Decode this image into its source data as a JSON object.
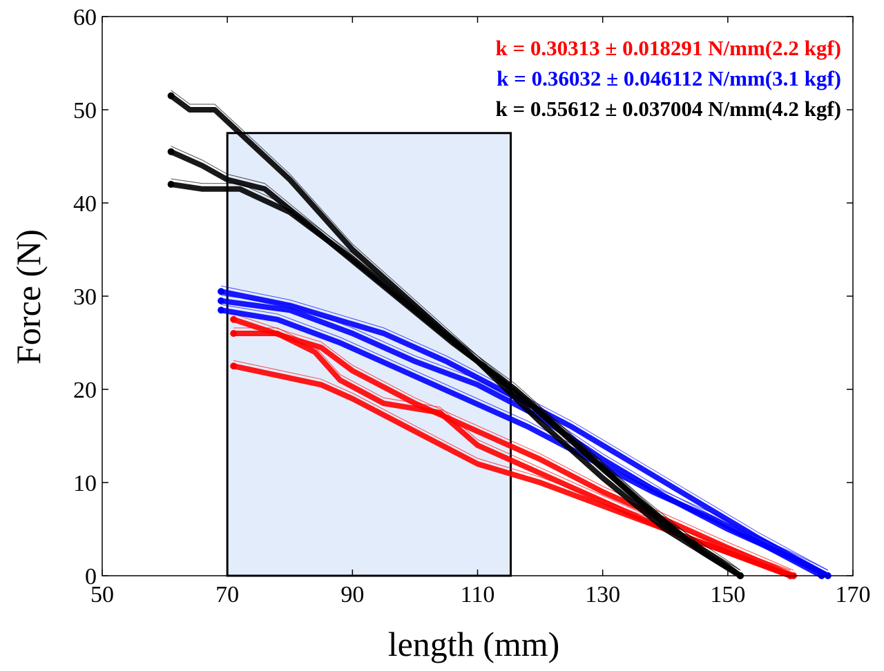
{
  "chart_data": {
    "type": "scatter",
    "title": "",
    "xlabel": "length (mm)",
    "ylabel": "Force (N)",
    "xlim": [
      50,
      170
    ],
    "ylim": [
      0,
      60
    ],
    "xticks": [
      50,
      70,
      90,
      110,
      130,
      150,
      170
    ],
    "yticks": [
      0,
      10,
      20,
      30,
      40,
      50,
      60
    ],
    "grid": false,
    "highlight_region": {
      "x": [
        70,
        115.3
      ],
      "y": [
        0,
        47.5
      ],
      "fill": "#e3ecfb",
      "stroke": "#000000"
    },
    "annotations": [
      {
        "text": "k = 0.30313 ± 0.018291 N/mm(2.2 kgf)",
        "color": "#ff0000"
      },
      {
        "text": "k = 0.36032 ± 0.046112 N/mm(3.1 kgf)",
        "color": "#0000ff"
      },
      {
        "text": "k = 0.55612 ± 0.037004 N/mm(4.2 kgf)",
        "color": "#000000"
      }
    ],
    "series": [
      {
        "color": "#ff0000",
        "traces": [
          {
            "x": [
              71,
              80,
              85,
              90,
              100,
              110,
              120,
              130,
              140,
              150,
              160.5
            ],
            "y": [
              27.5,
              25.5,
              24.5,
              22,
              18.5,
              15.5,
              12.5,
              9,
              6,
              3,
              0
            ]
          },
          {
            "x": [
              71,
              78,
              84,
              88,
              95,
              104,
              110,
              120,
              130,
              140,
              150,
              160
            ],
            "y": [
              26,
              26,
              24,
              21,
              18.5,
              17.5,
              14,
              11,
              8,
              5,
              2.5,
              0
            ]
          },
          {
            "x": [
              71,
              78,
              85,
              90,
              100,
              110,
              120,
              130,
              140,
              150,
              160
            ],
            "y": [
              22.5,
              21.5,
              20.5,
              19,
              15.5,
              12,
              10,
              7.5,
              5,
              2.5,
              0
            ]
          }
        ]
      },
      {
        "color": "#0000ff",
        "traces": [
          {
            "x": [
              69,
              80,
              90,
              95,
              105,
              115,
              125,
              135,
              145,
              155,
              166
            ],
            "y": [
              30.5,
              29,
              27,
              26,
              23,
              19.5,
              16,
              12,
              8,
              4,
              0
            ]
          },
          {
            "x": [
              69,
              80,
              90,
              100,
              110,
              120,
              130,
              140,
              150,
              160,
              166
            ],
            "y": [
              29.5,
              28.5,
              26,
              23,
              20.5,
              17,
              12.5,
              8.5,
              5,
              2,
              0
            ]
          },
          {
            "x": [
              69,
              78,
              88,
              98,
              108,
              118,
              128,
              138,
              148,
              158,
              165
            ],
            "y": [
              28.5,
              27.5,
              25,
              22,
              19,
              16,
              12.5,
              9,
              6,
              2.5,
              0
            ]
          }
        ]
      },
      {
        "color": "#000000",
        "traces": [
          {
            "x": [
              61,
              64,
              68,
              72,
              80,
              90,
              100,
              110,
              120,
              130,
              140,
              152
            ],
            "y": [
              51.5,
              50,
              50,
              47.5,
              42.5,
              35,
              29,
              23,
              16.5,
              10.5,
              5,
              0
            ]
          },
          {
            "x": [
              61,
              66,
              70,
              76,
              86,
              96,
              106,
              116,
              126,
              136,
              146,
              152
            ],
            "y": [
              45.5,
              44,
              42.5,
              41.5,
              36,
              30.5,
              25,
              20,
              14,
              8,
              2.5,
              0
            ]
          },
          {
            "x": [
              61,
              66,
              72,
              80,
              90,
              100,
              110,
              120,
              130,
              140,
              150,
              152
            ],
            "y": [
              42,
              41.5,
              41.5,
              39,
              34,
              28.5,
              23,
              17.5,
              11.5,
              5.5,
              1,
              0
            ]
          }
        ]
      }
    ]
  }
}
